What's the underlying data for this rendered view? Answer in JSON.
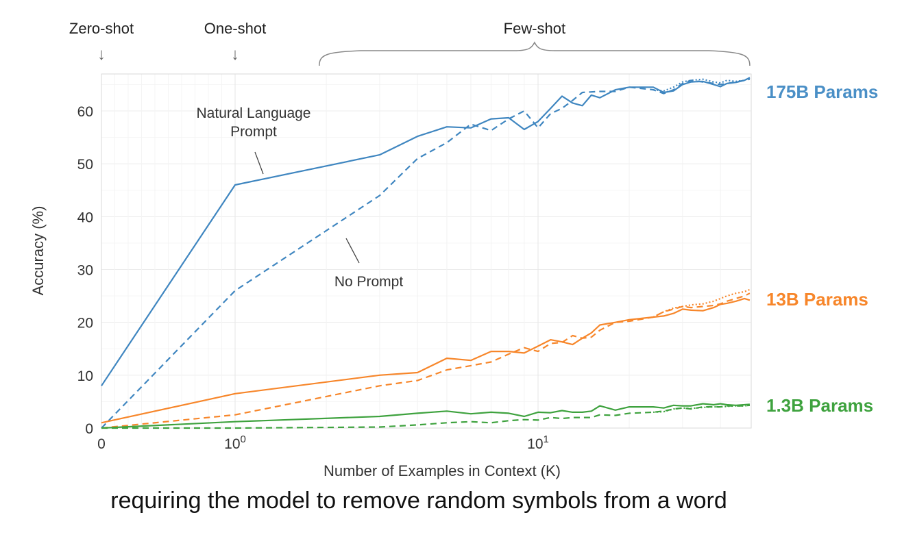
{
  "caption": "requiring the model to remove random symbols from a word",
  "chart_data": {
    "type": "line",
    "xlabel": "Number of Examples in Context  (K)",
    "ylabel": "Accuracy (%)",
    "xscale": "symlog",
    "xlim": [
      0,
      50
    ],
    "ylim": [
      0,
      67
    ],
    "grid": true,
    "x_ticks": [
      {
        "x": 0,
        "base": "0",
        "exp": ""
      },
      {
        "x": 1,
        "base": "10",
        "exp": "0"
      },
      {
        "x": 10,
        "base": "10",
        "exp": "1"
      }
    ],
    "y_ticks": [
      0,
      10,
      20,
      30,
      40,
      50,
      60
    ],
    "regions": [
      {
        "label": "Zero-shot",
        "x": 0,
        "marker": "↓"
      },
      {
        "label": "One-shot",
        "x": 1,
        "marker": "↓"
      },
      {
        "label": "Few-shot",
        "range": [
          1.8,
          50
        ]
      }
    ],
    "annotations": [
      {
        "lines": [
          "Natural Language",
          "Prompt"
        ]
      },
      {
        "lines": [
          "No Prompt"
        ]
      }
    ],
    "series_labels": [
      {
        "text": "175B Params",
        "color": "#4a8fc6"
      },
      {
        "text": "13B Params",
        "color": "#f7862a"
      },
      {
        "text": "1.3B Params",
        "color": "#3ea23e"
      }
    ],
    "series": [
      {
        "model": "175B",
        "style": "solid",
        "color": "#3f86c0",
        "x": [
          0,
          1,
          3,
          4,
          5,
          6,
          7,
          8,
          9,
          10,
          11,
          12,
          13,
          14,
          15,
          16,
          18,
          20,
          24,
          26,
          28,
          30,
          32,
          35,
          38,
          40,
          42,
          45,
          48,
          50
        ],
        "y": [
          8,
          46,
          51.7,
          55.2,
          57,
          56.8,
          58.5,
          58.7,
          56.5,
          58,
          60.5,
          62.8,
          61.5,
          61,
          63,
          62.5,
          64,
          64.5,
          64.5,
          63.5,
          63.8,
          65,
          65.5,
          65.6,
          65,
          64.6,
          65.2,
          65.4,
          65.8,
          66.3
        ]
      },
      {
        "model": "175B",
        "style": "dashed",
        "color": "#3f86c0",
        "x": [
          0,
          1,
          3,
          4,
          5,
          6,
          7,
          8,
          9,
          10,
          11,
          12,
          13,
          14,
          16,
          18,
          20,
          24,
          26,
          28,
          30,
          32,
          35,
          38,
          40,
          42,
          45,
          48,
          50
        ],
        "y": [
          0,
          26,
          44,
          51,
          54,
          57.5,
          56.3,
          58.5,
          60,
          56.8,
          59.5,
          60.5,
          62,
          63.5,
          63.7,
          63.7,
          64.5,
          64,
          63.3,
          64,
          65.2,
          65.8,
          65.5,
          65.2,
          65,
          65.2,
          65.5,
          65.8,
          66
        ]
      },
      {
        "model": "175B",
        "style": "dotted",
        "color": "#3f86c0",
        "x": [
          24,
          26,
          28,
          30,
          32,
          35,
          38,
          40,
          42,
          45,
          48,
          50
        ],
        "y": [
          64,
          63.8,
          64.5,
          65.5,
          65.8,
          66,
          65.5,
          65.3,
          65.8,
          65.6,
          65.8,
          66.3
        ]
      },
      {
        "model": "13B",
        "style": "solid",
        "color": "#f7862a",
        "x": [
          0,
          1,
          3,
          4,
          5,
          6,
          7,
          8,
          9,
          10,
          11,
          12,
          13,
          14,
          15,
          16,
          18,
          20,
          24,
          26,
          28,
          30,
          32,
          35,
          38,
          40,
          42,
          45,
          48,
          50
        ],
        "y": [
          1,
          6.5,
          10,
          10.5,
          13.2,
          12.8,
          14.5,
          14.5,
          14.2,
          15.5,
          16.7,
          16.3,
          15.8,
          17,
          18,
          19.5,
          20,
          20.5,
          21,
          21.2,
          21.7,
          22.5,
          22.3,
          22.2,
          22.8,
          23.4,
          23.6,
          24,
          24.5,
          24.2
        ]
      },
      {
        "model": "13B",
        "style": "dashed",
        "color": "#f7862a",
        "x": [
          0,
          1,
          3,
          4,
          5,
          6,
          7,
          8,
          9,
          10,
          11,
          12,
          13,
          14,
          15,
          16,
          18,
          20,
          24,
          26,
          28,
          30,
          32,
          35,
          38,
          40,
          42,
          45,
          48,
          50
        ],
        "y": [
          0,
          2.5,
          8,
          9,
          11,
          11.8,
          12.5,
          14,
          15.2,
          14.5,
          16,
          16.2,
          17.5,
          17,
          17.2,
          18.5,
          20,
          20.2,
          21,
          22,
          22.5,
          23,
          22.8,
          23,
          23.2,
          23.5,
          24,
          24.5,
          25,
          25.5
        ]
      },
      {
        "model": "13B",
        "style": "dotted",
        "color": "#f7862a",
        "x": [
          24,
          26,
          28,
          30,
          32,
          35,
          38,
          40,
          42,
          45,
          48,
          50
        ],
        "y": [
          21,
          22,
          22.7,
          23,
          23.3,
          23.5,
          24,
          24.5,
          25,
          25.5,
          25.8,
          26.2
        ]
      },
      {
        "model": "1.3B",
        "style": "solid",
        "color": "#3ea23e",
        "x": [
          0,
          1,
          3,
          4,
          5,
          6,
          7,
          8,
          9,
          10,
          11,
          12,
          13,
          14,
          15,
          16,
          18,
          20,
          24,
          26,
          28,
          30,
          32,
          35,
          38,
          40,
          42,
          45,
          48,
          50
        ],
        "y": [
          0,
          1.2,
          2.2,
          2.8,
          3.2,
          2.7,
          3,
          2.8,
          2.2,
          3,
          2.9,
          3.3,
          3,
          3,
          3.2,
          4.2,
          3.4,
          4,
          4,
          3.8,
          4.3,
          4.2,
          4.2,
          4.6,
          4.4,
          4.6,
          4.4,
          4.3,
          4.4,
          4.5
        ]
      },
      {
        "model": "1.3B",
        "style": "dashed",
        "color": "#3ea23e",
        "x": [
          0,
          1,
          3,
          4,
          5,
          6,
          7,
          8,
          9,
          10,
          11,
          12,
          13,
          14,
          15,
          16,
          18,
          20,
          24,
          26,
          28,
          30,
          32,
          35,
          38,
          40,
          42,
          45,
          48,
          50
        ],
        "y": [
          0,
          0,
          0.2,
          0.6,
          1,
          1.2,
          1,
          1.4,
          1.6,
          1.5,
          2,
          1.8,
          2,
          2,
          2,
          2.5,
          2.4,
          2.8,
          3,
          3.2,
          3.6,
          3.8,
          3.6,
          4,
          4,
          4,
          4.2,
          4.2,
          4.2,
          4.3
        ]
      },
      {
        "model": "1.3B",
        "style": "dotted",
        "color": "#3ea23e",
        "x": [
          24,
          26,
          28,
          30,
          32,
          35,
          38,
          40,
          42,
          45,
          48,
          50
        ],
        "y": [
          3,
          3.1,
          3.6,
          3.8,
          3.7,
          3.9,
          4,
          4,
          4.1,
          4.2,
          4.2,
          4.3
        ]
      }
    ]
  }
}
